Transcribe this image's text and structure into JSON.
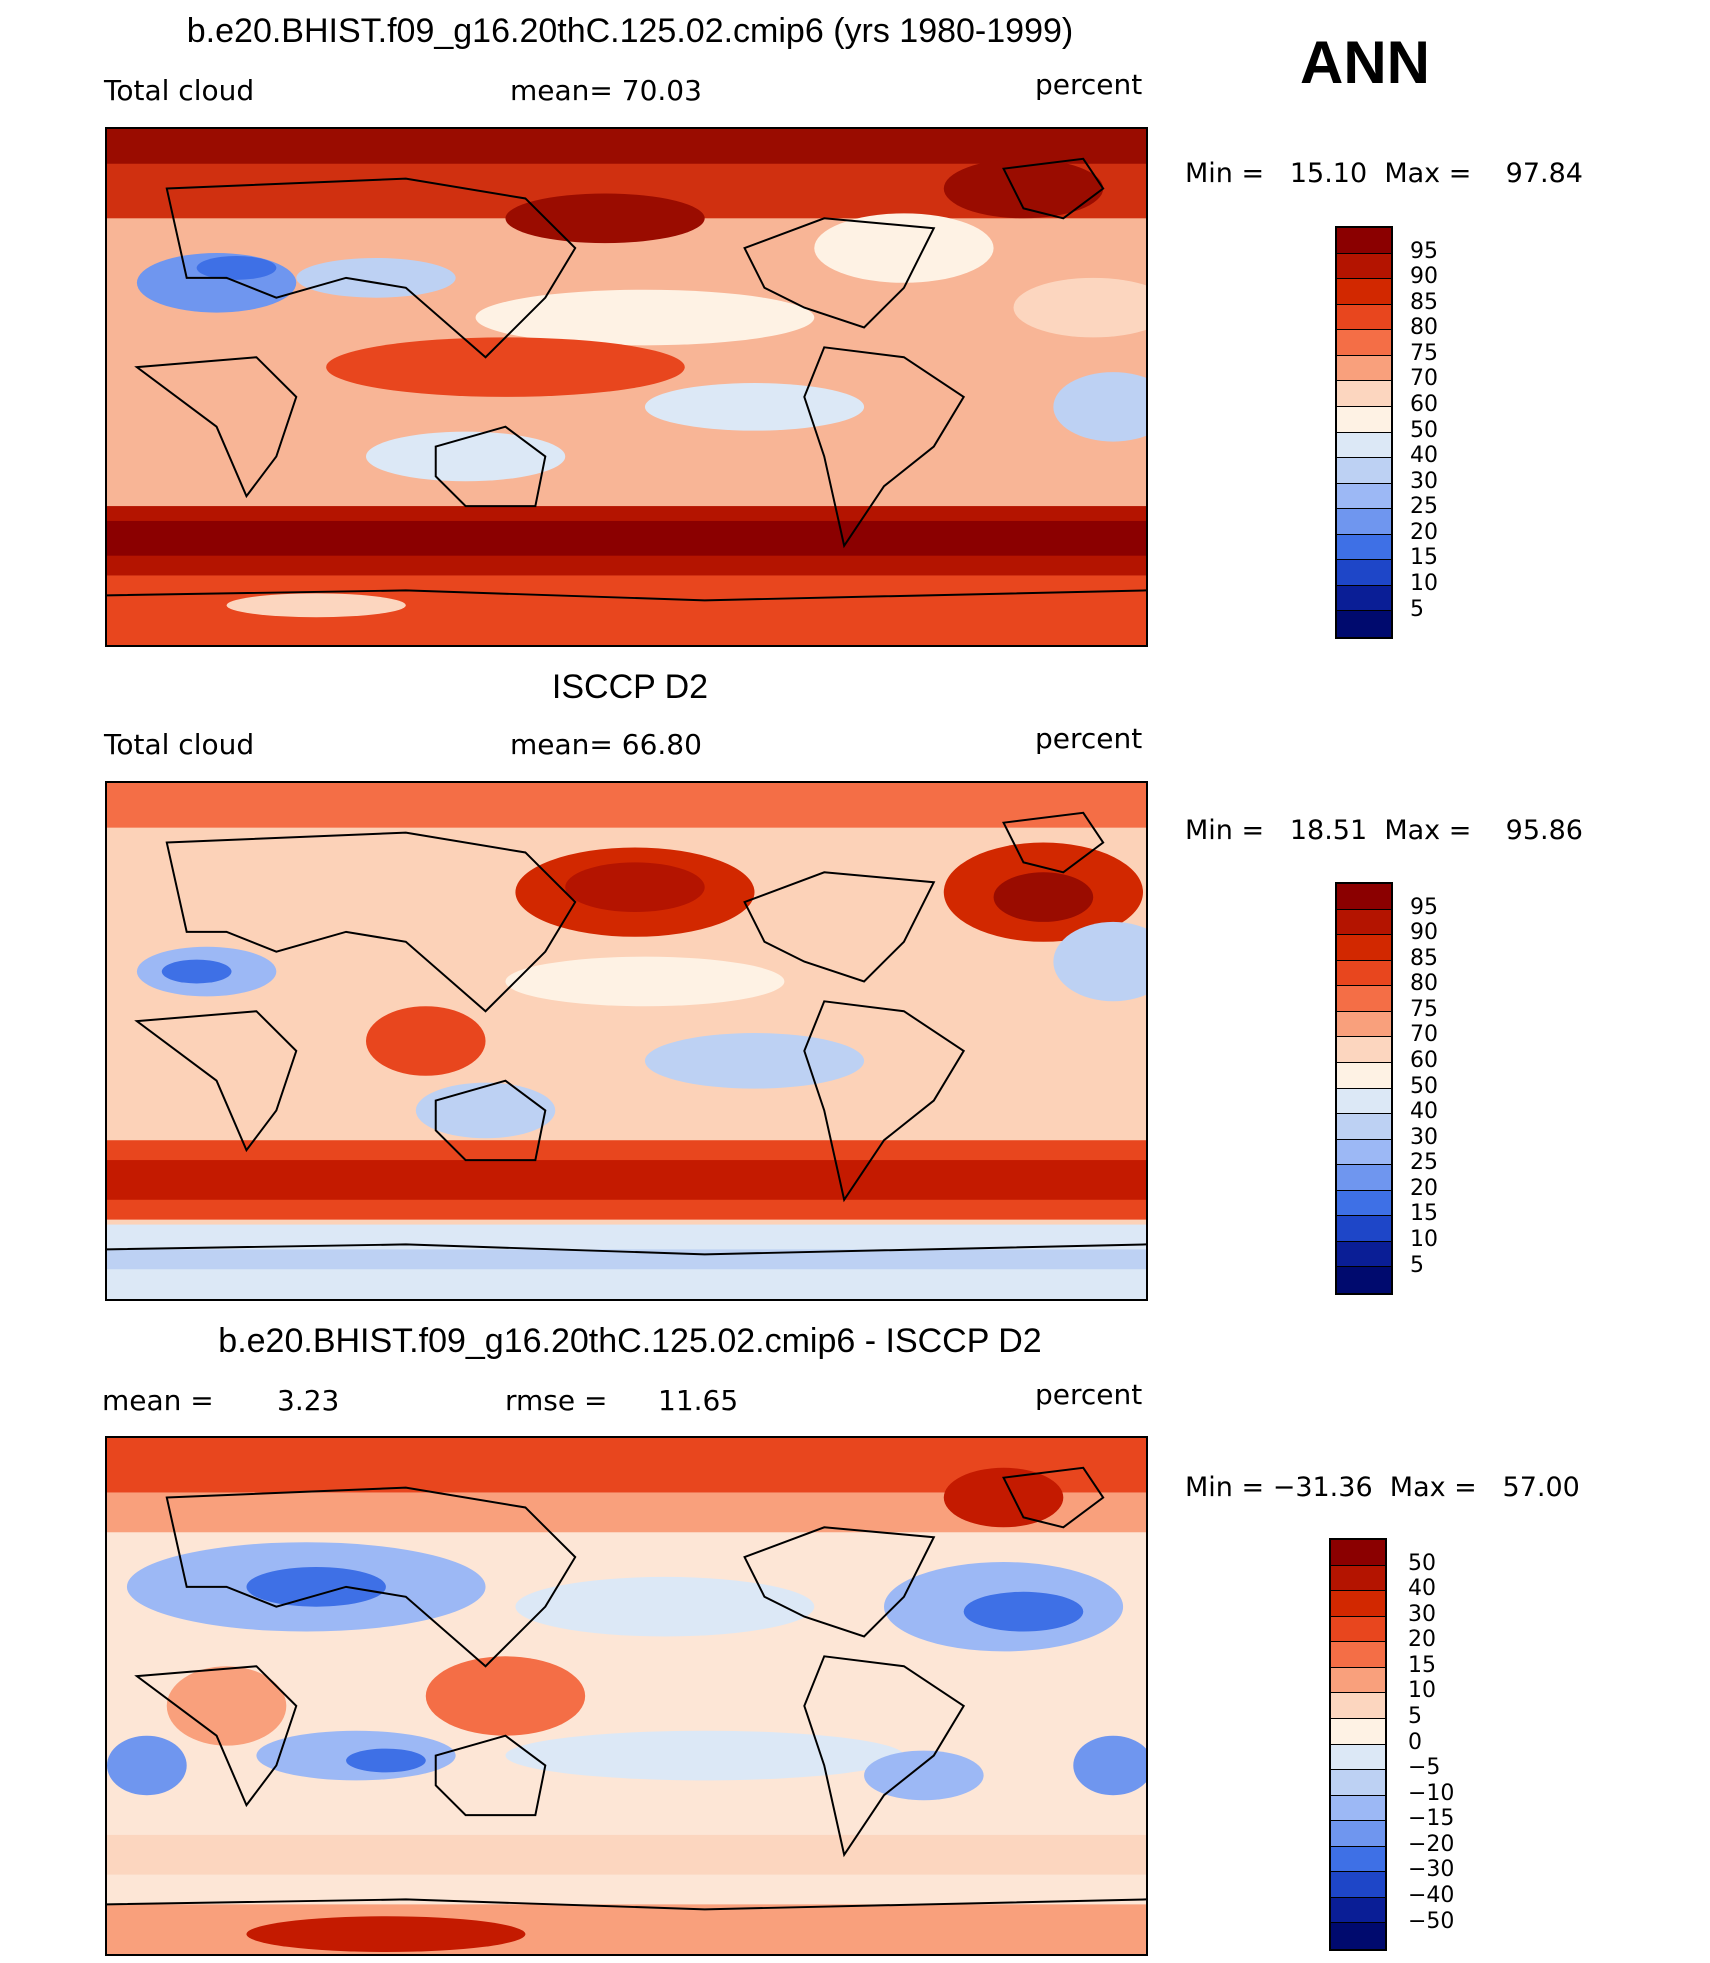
{
  "season": "ANN",
  "panels": [
    {
      "title": "b.e20.BHIST.f09_g16.20thC.125.02.cmip6 (yrs 1980-1999)",
      "left_label": "Total cloud",
      "center_label": "mean=   70.03",
      "unit": "percent",
      "minmax": "Min =   15.10  Max =    97.84",
      "colorbar": {
        "labels": [
          "95",
          "90",
          "85",
          "80",
          "75",
          "70",
          "60",
          "50",
          "40",
          "30",
          "25",
          "20",
          "15",
          "10",
          "5"
        ],
        "colors": [
          "#8b0000",
          "#b41400",
          "#d22800",
          "#e8461e",
          "#f46e46",
          "#f9a07c",
          "#fcd6bf",
          "#fef2e4",
          "#dce8f6",
          "#bdd1f3",
          "#9cb8f5",
          "#6f96ef",
          "#3e70e6",
          "#1e46c8",
          "#0a1e96",
          "#000a6e"
        ]
      },
      "fill": "#f7b08f",
      "blobs": [
        {
          "c": "#c41a00",
          "shape": "band-top"
        },
        {
          "c": "#c41a00",
          "shape": "band-south"
        }
      ]
    },
    {
      "title": "ISCCP D2",
      "left_label": "Total cloud",
      "center_label": "mean=   66.80",
      "unit": "percent",
      "minmax": "Min =   18.51  Max =    95.86",
      "colorbar": {
        "labels": [
          "95",
          "90",
          "85",
          "80",
          "75",
          "70",
          "60",
          "50",
          "40",
          "30",
          "25",
          "20",
          "15",
          "10",
          "5"
        ],
        "colors": [
          "#8b0000",
          "#b41400",
          "#d22800",
          "#e8461e",
          "#f46e46",
          "#f9a07c",
          "#fcd6bf",
          "#fef2e4",
          "#dce8f6",
          "#bdd1f3",
          "#9cb8f5",
          "#6f96ef",
          "#3e70e6",
          "#1e46c8",
          "#0a1e96",
          "#000a6e"
        ]
      },
      "fill": "#fbc8ad"
    },
    {
      "title": "b.e20.BHIST.f09_g16.20thC.125.02.cmip6 - ISCCP D2",
      "left_label": "mean =",
      "left_value": "3.23",
      "center_label": "rmse =",
      "center_value": "11.65",
      "unit": "percent",
      "minmax": "Min = −31.36  Max =   57.00",
      "colorbar": {
        "labels": [
          "50",
          "40",
          "30",
          "20",
          "15",
          "10",
          "5",
          "0",
          "−5",
          "−10",
          "−15",
          "−20",
          "−30",
          "−40",
          "−50"
        ],
        "colors": [
          "#8b0000",
          "#b41400",
          "#d22800",
          "#e8461e",
          "#f46e46",
          "#f9a07c",
          "#fcd6bf",
          "#fef2e4",
          "#dce8f6",
          "#bdd1f3",
          "#9cb8f5",
          "#6f96ef",
          "#3e70e6",
          "#1e46c8",
          "#0a1e96",
          "#000a6e"
        ]
      },
      "fill": "#fde6d6"
    }
  ]
}
